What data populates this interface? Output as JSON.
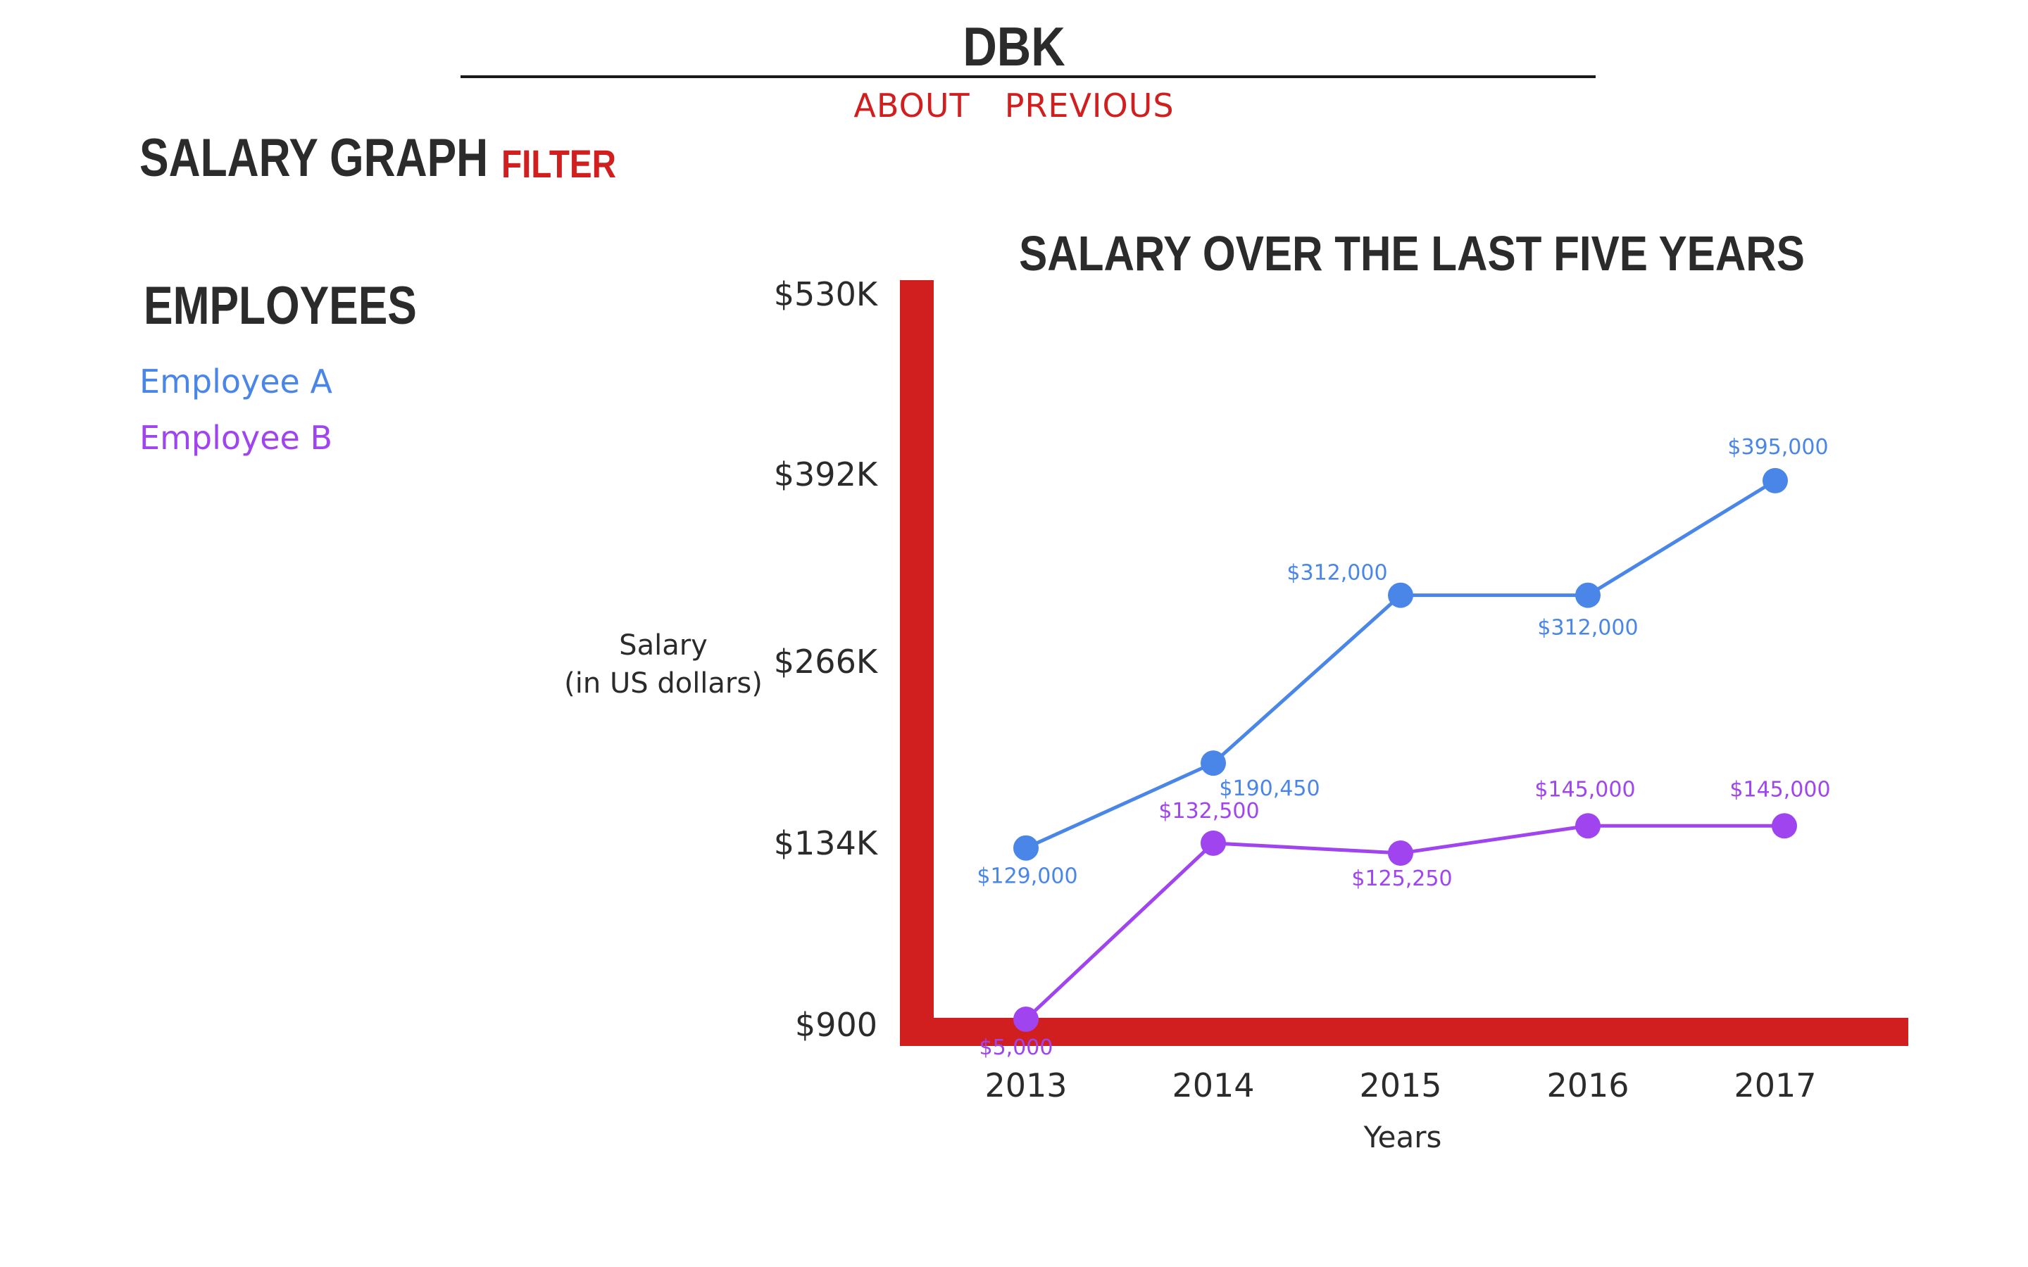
{
  "header": {
    "site_title": "DBK",
    "nav": {
      "about": "ABOUT",
      "previous": "PREVIOUS"
    }
  },
  "page": {
    "heading": "SALARY GRAPH",
    "filter_label": "FILTER"
  },
  "sidebar": {
    "heading": "EMPLOYEES",
    "employees": [
      {
        "label": "Employee A",
        "color": "#4a86e8"
      },
      {
        "label": "Employee B",
        "color": "#a044f0"
      }
    ]
  },
  "colors": {
    "accent": "#d11f1f",
    "text": "#2b2b2b",
    "axis": "#d11f1f"
  },
  "chart_data": {
    "type": "line",
    "title": "SALARY OVER THE LAST FIVE YEARS",
    "xlabel": "Years",
    "ylabel": [
      "Salary",
      "(in US dollars)"
    ],
    "x": [
      "2013",
      "2014",
      "2015",
      "2016",
      "2017"
    ],
    "yticks": [
      {
        "value": 900,
        "label": "$900"
      },
      {
        "value": 134000,
        "label": "$134K"
      },
      {
        "value": 266000,
        "label": "$266K"
      },
      {
        "value": 392000,
        "label": "$392K"
      },
      {
        "value": 530000,
        "label": "$530K"
      }
    ],
    "ylim": [
      900,
      530000
    ],
    "grid": false,
    "series": [
      {
        "name": "Employee A",
        "color": "#4a86e8",
        "values": [
          129000,
          190450,
          312000,
          312000,
          395000
        ],
        "labels": [
          "$129,000",
          "$190,450",
          "$312,000",
          "$312,000",
          "$395,000"
        ]
      },
      {
        "name": "Employee B",
        "color": "#a044f0",
        "values": [
          5000,
          132500,
          125250,
          145000,
          145000
        ],
        "labels": [
          "$5,000",
          "$132,500",
          "$125,250",
          "$145,000",
          "$145,000"
        ]
      }
    ]
  }
}
